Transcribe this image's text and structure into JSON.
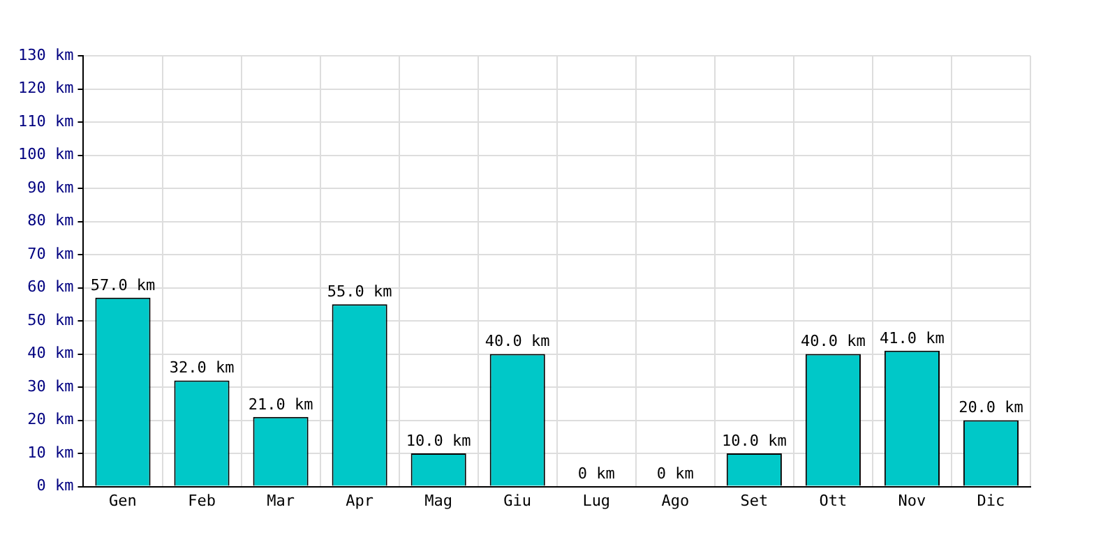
{
  "chart_data": {
    "type": "bar",
    "categories": [
      "Gen",
      "Feb",
      "Mar",
      "Apr",
      "Mag",
      "Giu",
      "Lug",
      "Ago",
      "Set",
      "Ott",
      "Nov",
      "Dic"
    ],
    "values": [
      57,
      32,
      21,
      55,
      10,
      40,
      0,
      0,
      10,
      40,
      41,
      20
    ],
    "value_labels": [
      "57.0 km",
      "32.0 km",
      "21.0 km",
      "55.0 km",
      "10.0 km",
      "40.0 km",
      "0 km",
      "0 km",
      "10.0 km",
      "40.0 km",
      "41.0 km",
      "20.0 km"
    ],
    "color": "#00c8c8",
    "ylim": [
      0,
      130
    ],
    "yticks": [
      {
        "value": 0,
        "label": "0 km"
      },
      {
        "value": 10,
        "label": "10 km"
      },
      {
        "value": 20,
        "label": "20 km"
      },
      {
        "value": 30,
        "label": "30 km"
      },
      {
        "value": 40,
        "label": "40 km"
      },
      {
        "value": 50,
        "label": "50 km"
      },
      {
        "value": 60,
        "label": "60 km"
      },
      {
        "value": 70,
        "label": "70 km"
      },
      {
        "value": 80,
        "label": "80 km"
      },
      {
        "value": 90,
        "label": "90 km"
      },
      {
        "value": 100,
        "label": "100 km"
      },
      {
        "value": 110,
        "label": "110 km"
      },
      {
        "value": 120,
        "label": "120 km"
      },
      {
        "value": 130,
        "label": "130 km"
      }
    ],
    "grid": true
  }
}
